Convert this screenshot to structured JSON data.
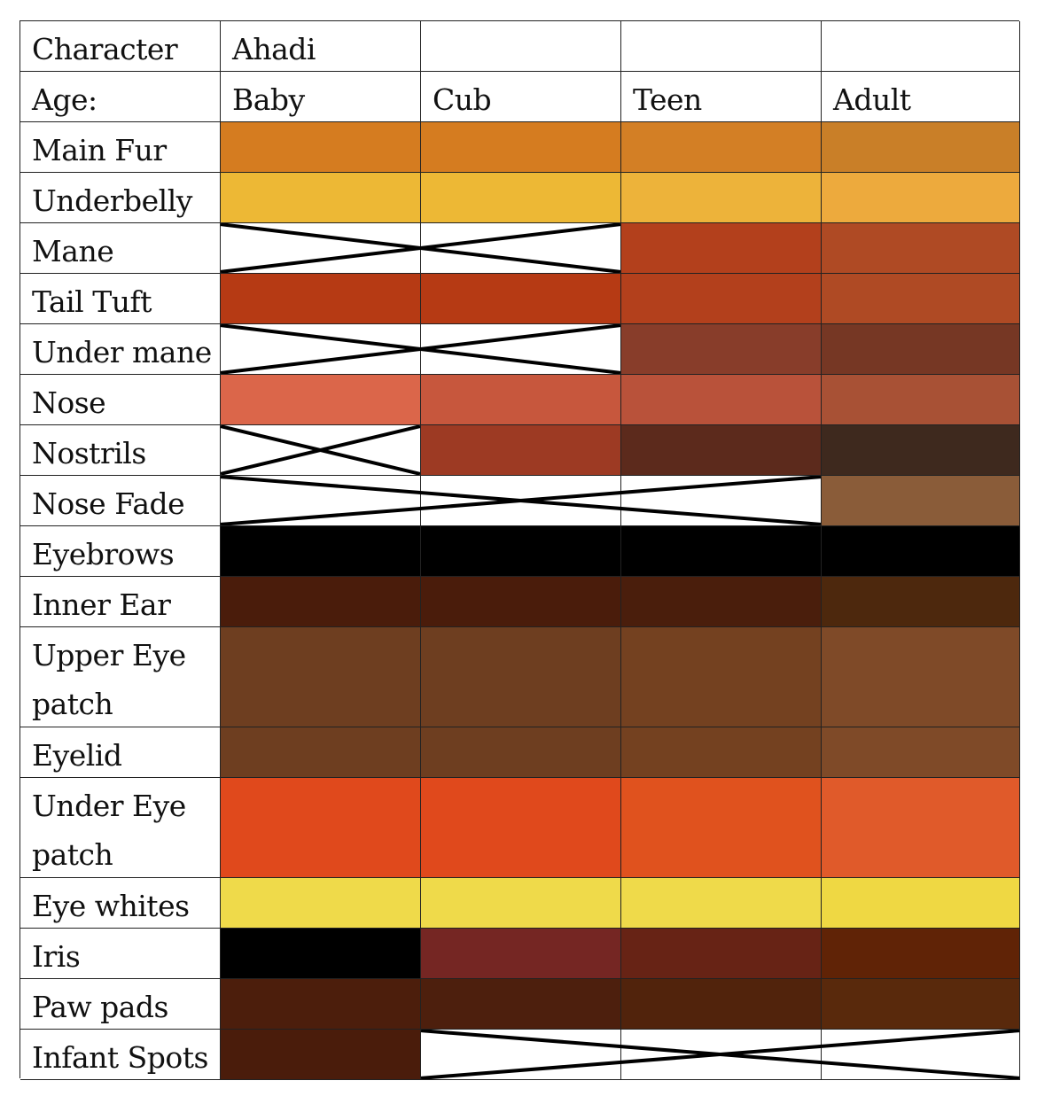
{
  "header": {
    "character_label": "Character",
    "character_name": "Ahadi",
    "age_label": "Age:",
    "ages": [
      "Baby",
      "Cub",
      "Teen",
      "Adult"
    ]
  },
  "rows": [
    {
      "label": "Main Fur",
      "tall": false,
      "cells": [
        "#D57C20",
        "#D57C20",
        "#D37F25",
        "#C97F28"
      ]
    },
    {
      "label": "Underbelly",
      "tall": false,
      "cells": [
        "#EDB835",
        "#EDB835",
        "#EDB33A",
        "#EDAA3D"
      ]
    },
    {
      "label": "Mane",
      "tall": false,
      "cells": [
        null,
        null,
        "#B3401C",
        "#AF4A24"
      ]
    },
    {
      "label": "Tail Tuft",
      "tall": false,
      "cells": [
        "#B63A14",
        "#B63A14",
        "#B3401C",
        "#AF4A24"
      ]
    },
    {
      "label": "Under mane",
      "tall": false,
      "cells": [
        null,
        null,
        "#883D2A",
        "#763724"
      ]
    },
    {
      "label": "Nose",
      "tall": false,
      "cells": [
        "#DB664A",
        "#C7573D",
        "#B9523A",
        "#A85135"
      ]
    },
    {
      "label": "Nostrils",
      "tall": false,
      "cells": [
        null,
        "#9D3A23",
        "#5C2A1C",
        "#3E291E"
      ]
    },
    {
      "label": "Nose Fade",
      "tall": false,
      "cells": [
        null,
        null,
        null,
        "#8A5C39"
      ]
    },
    {
      "label": "Eyebrows",
      "tall": false,
      "cells": [
        "#000000",
        "#000000",
        "#000000",
        "#000000"
      ]
    },
    {
      "label": "Inner Ear",
      "tall": false,
      "cells": [
        "#4A1C0B",
        "#4A1C0B",
        "#4A1E0C",
        "#4D280D"
      ]
    },
    {
      "label": "Upper Eye patch",
      "tall": true,
      "cells": [
        "#6E3E20",
        "#6E3E20",
        "#744120",
        "#7F4A28"
      ]
    },
    {
      "label": "Eyelid",
      "tall": false,
      "cells": [
        "#6E3E20",
        "#6E3E20",
        "#744120",
        "#7F4A28"
      ]
    },
    {
      "label": "Under Eye patch",
      "tall": true,
      "cells": [
        "#E0491C",
        "#E0491C",
        "#E0521E",
        "#E05A2A"
      ]
    },
    {
      "label": "Eye whites",
      "tall": false,
      "cells": [
        "#EFDA4A",
        "#EFDA4A",
        "#EFDA4A",
        "#EFD843"
      ]
    },
    {
      "label": "Iris",
      "tall": false,
      "cells": [
        "#000000",
        "#752623",
        "#672315",
        "#602306"
      ]
    },
    {
      "label": "Paw pads",
      "tall": false,
      "cells": [
        "#4C1E0C",
        "#4D1F0D",
        "#51230C",
        "#59290C"
      ]
    },
    {
      "label": "Infant Spots",
      "tall": false,
      "cells": [
        "#4A1C0B",
        null,
        null,
        null
      ]
    }
  ]
}
